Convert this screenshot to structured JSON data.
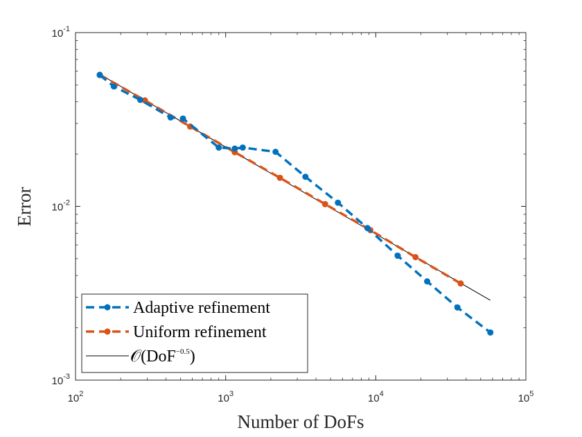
{
  "chart_data": {
    "type": "line",
    "xlabel": "Number of DoFs",
    "ylabel": "Error",
    "xscale": "log",
    "yscale": "log",
    "xlim": [
      100,
      100000
    ],
    "ylim": [
      0.001,
      0.1
    ],
    "grid": false,
    "legend_placement": "bottom-left",
    "x_ticks": [
      {
        "base": "10",
        "exp": "2",
        "value": 100
      },
      {
        "base": "10",
        "exp": "3",
        "value": 1000
      },
      {
        "base": "10",
        "exp": "4",
        "value": 10000
      },
      {
        "base": "10",
        "exp": "5",
        "value": 100000
      }
    ],
    "y_ticks": [
      {
        "base": "10",
        "exp": "-3",
        "value": 0.001
      },
      {
        "base": "10",
        "exp": "-2",
        "value": 0.01
      },
      {
        "base": "10",
        "exp": "-1",
        "value": 0.1
      }
    ],
    "series": [
      {
        "name": "Adaptive refinement",
        "color": "#0072BD",
        "style": "dashed-with-markers",
        "x": [
          145,
          180,
          270,
          430,
          520,
          900,
          1150,
          1300,
          2150,
          3400,
          5600,
          8800,
          14000,
          22000,
          35000,
          58000
        ],
        "y": [
          0.057,
          0.049,
          0.041,
          0.0325,
          0.032,
          0.0218,
          0.0215,
          0.0218,
          0.0206,
          0.0148,
          0.0105,
          0.0075,
          0.0052,
          0.0037,
          0.00262,
          0.00188
        ]
      },
      {
        "name": "Uniform refinement",
        "color": "#D95319",
        "style": "dashed-with-markers",
        "x": [
          145,
          290,
          580,
          1150,
          2300,
          4600,
          9200,
          18400,
          36800
        ],
        "y": [
          0.0572,
          0.0407,
          0.0288,
          0.0205,
          0.0146,
          0.0103,
          0.0073,
          0.0051,
          0.0036
        ]
      },
      {
        "name": "𝒪(DoF",
        "name_exp": "−0.5",
        "name_suffix": ")",
        "color": "#000000",
        "style": "solid-thin",
        "x": [
          145,
          58000
        ],
        "y": [
          0.0576,
          0.00288
        ]
      }
    ]
  }
}
